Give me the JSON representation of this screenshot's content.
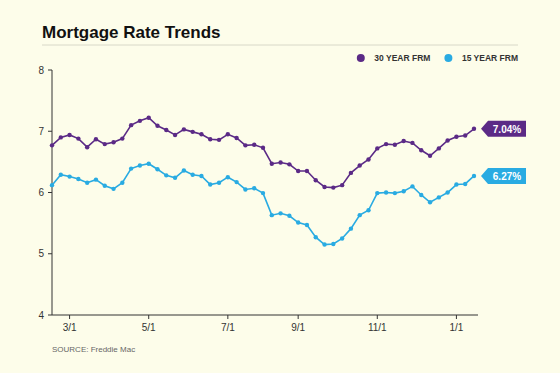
{
  "chart_data": {
    "type": "line",
    "title": "Mortgage Rate Trends",
    "source": "SOURCE: Freddie Mac",
    "categories": [
      null,
      null,
      "3/1",
      null,
      null,
      null,
      null,
      null,
      null,
      null,
      null,
      "5/1",
      null,
      null,
      null,
      null,
      null,
      null,
      null,
      null,
      "7/1",
      null,
      null,
      null,
      null,
      null,
      null,
      null,
      "9/1",
      null,
      null,
      null,
      null,
      null,
      null,
      null,
      null,
      "11/1",
      null,
      null,
      null,
      null,
      null,
      null,
      null,
      null,
      "1/1",
      null,
      null
    ],
    "series": [
      {
        "name": "30 YEAR FRM",
        "color": "#5b2a86",
        "marker": "circle",
        "end_label": "7.04%",
        "values": [
          6.77,
          6.9,
          6.94,
          6.88,
          6.74,
          6.87,
          6.79,
          6.82,
          6.88,
          7.1,
          7.17,
          7.22,
          7.09,
          7.02,
          6.94,
          7.03,
          6.99,
          6.95,
          6.87,
          6.86,
          6.95,
          6.89,
          6.77,
          6.78,
          6.73,
          6.47,
          6.49,
          6.46,
          6.35,
          6.35,
          6.2,
          6.09,
          6.08,
          6.12,
          6.32,
          6.44,
          6.54,
          6.72,
          6.79,
          6.78,
          6.84,
          6.81,
          6.69,
          6.6,
          6.72,
          6.85,
          6.91,
          6.93,
          7.04
        ]
      },
      {
        "name": "15 YEAR FRM",
        "color": "#29abe2",
        "marker": "circle",
        "end_label": "6.27%",
        "values": [
          6.12,
          6.29,
          6.26,
          6.22,
          6.16,
          6.21,
          6.11,
          6.06,
          6.16,
          6.39,
          6.44,
          6.47,
          6.38,
          6.28,
          6.24,
          6.36,
          6.29,
          6.27,
          6.13,
          6.16,
          6.25,
          6.17,
          6.05,
          6.07,
          5.99,
          5.63,
          5.66,
          5.62,
          5.51,
          5.47,
          5.27,
          5.15,
          5.16,
          5.25,
          5.41,
          5.63,
          5.71,
          5.99,
          6.0,
          5.99,
          6.02,
          6.1,
          5.96,
          5.84,
          5.92,
          6.0,
          6.13,
          6.14,
          6.27
        ]
      }
    ],
    "ylim": [
      4,
      8
    ],
    "yticks": [
      4,
      5,
      6,
      7,
      8
    ],
    "grid": false,
    "legend": "top-right"
  }
}
